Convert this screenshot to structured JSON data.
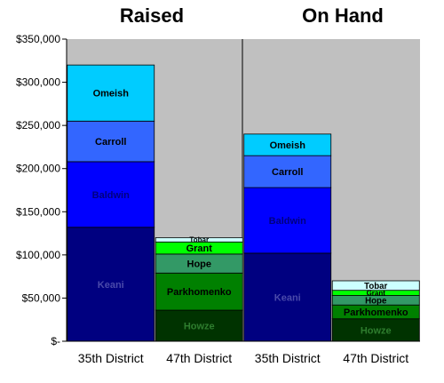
{
  "chart_data": {
    "type": "bar",
    "stacked": true,
    "panels": [
      {
        "title": "Raised"
      },
      {
        "title": "On Hand"
      }
    ],
    "categories": [
      "35th District",
      "47th District",
      "35th District",
      "47th District"
    ],
    "y_ticks": [
      "$-",
      "$50,000",
      "$100,000",
      "$150,000",
      "$200,000",
      "$250,000",
      "$300,000",
      "$350,000"
    ],
    "ylim": [
      0,
      350000
    ],
    "grid": false,
    "plot_background": "#c0c0c0",
    "bars": [
      {
        "panel": "Raised",
        "category": "35th District",
        "segments": [
          {
            "name": "Keani",
            "value": 132000,
            "color": "#000080",
            "label_color": "#4a4aaa"
          },
          {
            "name": "Baldwin",
            "value": 76000,
            "color": "#0000ff",
            "label_color": "#000080"
          },
          {
            "name": "Carroll",
            "value": 47000,
            "color": "#3366ff",
            "label_color": "#000000"
          },
          {
            "name": "Omeish",
            "value": 65000,
            "color": "#00ccff",
            "label_color": "#000000"
          }
        ]
      },
      {
        "panel": "Raised",
        "category": "47th District",
        "segments": [
          {
            "name": "Howze",
            "value": 36000,
            "color": "#003300",
            "label_color": "#2e7d2e"
          },
          {
            "name": "Parkhomenko",
            "value": 43000,
            "color": "#008000",
            "label_color": "#000000"
          },
          {
            "name": "Hope",
            "value": 22000,
            "color": "#339966",
            "label_color": "#000000"
          },
          {
            "name": "Grant",
            "value": 14000,
            "color": "#00ff00",
            "label_color": "#000000"
          },
          {
            "name": "Tobar",
            "value": 5000,
            "color": "#ccffff",
            "label_color": "#000000"
          }
        ]
      },
      {
        "panel": "On Hand",
        "category": "35th District",
        "segments": [
          {
            "name": "Keani",
            "value": 102000,
            "color": "#000080",
            "label_color": "#4a4aaa"
          },
          {
            "name": "Baldwin",
            "value": 76000,
            "color": "#0000ff",
            "label_color": "#000080"
          },
          {
            "name": "Carroll",
            "value": 37000,
            "color": "#3366ff",
            "label_color": "#000000"
          },
          {
            "name": "Omeish",
            "value": 25000,
            "color": "#00ccff",
            "label_color": "#000000"
          }
        ]
      },
      {
        "panel": "On Hand",
        "category": "47th District",
        "segments": [
          {
            "name": "Howze",
            "value": 26000,
            "color": "#003300",
            "label_color": "#2e7d2e"
          },
          {
            "name": "Parkhomenko",
            "value": 16000,
            "color": "#008000",
            "label_color": "#000000"
          },
          {
            "name": "Hope",
            "value": 11000,
            "color": "#339966",
            "label_color": "#000000"
          },
          {
            "name": "Grant",
            "value": 6000,
            "color": "#00ff00",
            "label_color": "#000000"
          },
          {
            "name": "Tobar",
            "value": 11000,
            "color": "#ccffff",
            "label_color": "#000000"
          }
        ]
      }
    ]
  }
}
